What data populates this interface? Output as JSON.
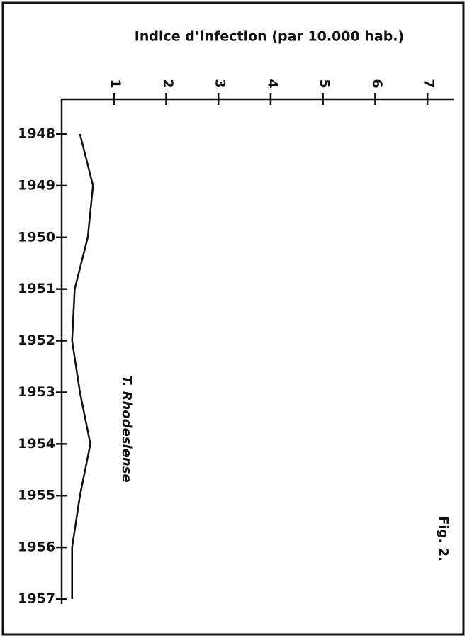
{
  "chart_data": {
    "type": "line",
    "orientation": "vertical",
    "title": "Indice d’infection (par 10.000 hab.)",
    "categories": [
      "1948",
      "1949",
      "1950",
      "1951",
      "1952",
      "1953",
      "1954",
      "1955",
      "1956",
      "1957"
    ],
    "values": [
      0.35,
      0.6,
      0.5,
      0.25,
      0.2,
      0.35,
      0.55,
      0.35,
      0.2,
      0.2
    ],
    "color": "#111111",
    "xlim": [
      0,
      7.5
    ],
    "xticks": [
      1,
      2,
      3,
      4,
      5,
      6,
      7
    ],
    "annotations": [
      "T. Rhodesiense",
      "Fig. 2."
    ]
  }
}
